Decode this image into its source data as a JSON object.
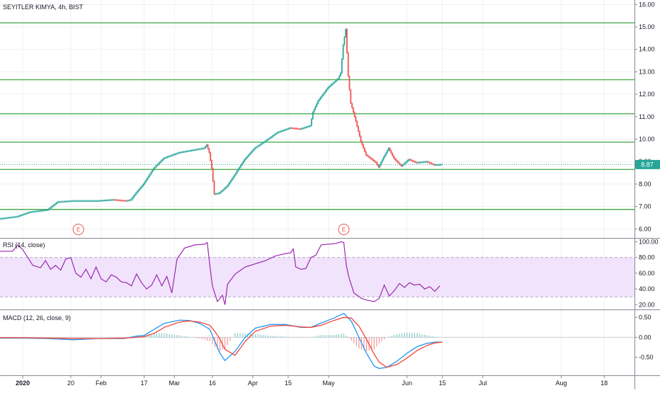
{
  "header": {
    "symbol_title": "SEYITLER KIMYA, 4h, BIST",
    "rsi_label": "RSI (14, close)",
    "macd_label": "MACD (12, 26, close, 9)"
  },
  "colors": {
    "up": "#26a69a",
    "down": "#ef5350",
    "level_line": "#4caf50",
    "rsi_line": "#9c27b0",
    "rsi_band": "#f0e3fb",
    "macd_line": "#2196f3",
    "signal_line": "#f44336",
    "price_badge": "#26a69a"
  },
  "price_badge": "8.87",
  "events": [
    {
      "label": "E",
      "date": 22
    },
    {
      "label": "E",
      "date": 127
    }
  ],
  "chart_data": [
    {
      "type": "candlestick",
      "title": "SEYITLER KIMYA, 4h, BIST",
      "x_tick_labels": [
        "2020",
        "20",
        "Feb",
        "17",
        "Mar",
        "16",
        "Apr",
        "15",
        "May",
        "Jun",
        "15",
        "Jul",
        "Aug",
        "18"
      ],
      "x_tick_days": [
        0,
        19,
        31,
        48,
        60,
        75,
        91,
        105,
        121,
        152,
        166,
        182,
        213,
        230
      ],
      "x_range_days": [
        -9,
        242
      ],
      "ylim": [
        5.6,
        16.2
      ],
      "y_ticks": [
        "6.00",
        "7.00",
        "8.00",
        "9.00",
        "10.00",
        "11.00",
        "12.00",
        "13.00",
        "14.00",
        "15.00",
        "16.00"
      ],
      "horizontal_levels": [
        15.18,
        12.65,
        11.13,
        9.87,
        8.65,
        6.87
      ],
      "last_price": 8.87,
      "price_path": [
        [
          -9,
          6.45
        ],
        [
          -2,
          6.55
        ],
        [
          3,
          6.75
        ],
        [
          10,
          6.85
        ],
        [
          14,
          7.2
        ],
        [
          20,
          7.25
        ],
        [
          30,
          7.25
        ],
        [
          36,
          7.3
        ],
        [
          41,
          7.25
        ],
        [
          43,
          7.3
        ],
        [
          45,
          7.6
        ],
        [
          48,
          8.0
        ],
        [
          52,
          8.7
        ],
        [
          56,
          9.15
        ],
        [
          62,
          9.4
        ],
        [
          67,
          9.5
        ],
        [
          72,
          9.6
        ],
        [
          73,
          9.75
        ],
        [
          74,
          9.4
        ],
        [
          75,
          8.7
        ],
        [
          76,
          7.55
        ],
        [
          78,
          7.6
        ],
        [
          81,
          7.9
        ],
        [
          84,
          8.4
        ],
        [
          88,
          9.1
        ],
        [
          92,
          9.6
        ],
        [
          96,
          9.9
        ],
        [
          101,
          10.3
        ],
        [
          106,
          10.5
        ],
        [
          110,
          10.45
        ],
        [
          114,
          10.6
        ],
        [
          115,
          11.2
        ],
        [
          117,
          11.7
        ],
        [
          121,
          12.3
        ],
        [
          125,
          12.7
        ],
        [
          126,
          12.95
        ],
        [
          127,
          14.2
        ],
        [
          128,
          14.9
        ],
        [
          129,
          12.8
        ],
        [
          130,
          11.6
        ],
        [
          132,
          10.8
        ],
        [
          134,
          9.9
        ],
        [
          136,
          9.3
        ],
        [
          140,
          8.95
        ],
        [
          141,
          8.75
        ],
        [
          143,
          9.2
        ],
        [
          145,
          9.6
        ],
        [
          147,
          9.15
        ],
        [
          150,
          8.8
        ],
        [
          153,
          9.1
        ],
        [
          156,
          8.95
        ],
        [
          160,
          9.0
        ],
        [
          163,
          8.85
        ],
        [
          166,
          8.87
        ]
      ]
    },
    {
      "type": "line",
      "title": "RSI (14, close)",
      "ylim": [
        14,
        104
      ],
      "y_ticks": [
        "20.00",
        "40.00",
        "60.00",
        "80.00",
        "100.00"
      ],
      "band": [
        30,
        80
      ],
      "series": [
        {
          "values": [
            [
              -9,
              88
            ],
            [
              -4,
              88
            ],
            [
              -2,
              96
            ],
            [
              0,
              90
            ],
            [
              2,
              80
            ],
            [
              4,
              70
            ],
            [
              7,
              67
            ],
            [
              9,
              76
            ],
            [
              11,
              65
            ],
            [
              13,
              70
            ],
            [
              15,
              64
            ],
            [
              17,
              78
            ],
            [
              19,
              80
            ],
            [
              21,
              60
            ],
            [
              23,
              55
            ],
            [
              25,
              65
            ],
            [
              27,
              53
            ],
            [
              29,
              68
            ],
            [
              31,
              53
            ],
            [
              33,
              49
            ],
            [
              35,
              58
            ],
            [
              37,
              55
            ],
            [
              39,
              49
            ],
            [
              41,
              48
            ],
            [
              43,
              44
            ],
            [
              45,
              59
            ],
            [
              47,
              48
            ],
            [
              49,
              40
            ],
            [
              51,
              45
            ],
            [
              53,
              58
            ],
            [
              55,
              44
            ],
            [
              57,
              56
            ],
            [
              59,
              35
            ],
            [
              61,
              78
            ],
            [
              64,
              92
            ],
            [
              68,
              96
            ],
            [
              72,
              97
            ],
            [
              73,
              99
            ],
            [
              74,
              70
            ],
            [
              75,
              44
            ],
            [
              77,
              24
            ],
            [
              79,
              32
            ],
            [
              80,
              20
            ],
            [
              81,
              46
            ],
            [
              84,
              59
            ],
            [
              88,
              68
            ],
            [
              92,
              72
            ],
            [
              96,
              76
            ],
            [
              100,
              82
            ],
            [
              104,
              85
            ],
            [
              106,
              86
            ],
            [
              107,
              91
            ],
            [
              108,
              68
            ],
            [
              110,
              65
            ],
            [
              112,
              66
            ],
            [
              114,
              80
            ],
            [
              116,
              83
            ],
            [
              118,
              96
            ],
            [
              124,
              98
            ],
            [
              126,
              100
            ],
            [
              127,
              99
            ],
            [
              128,
              70
            ],
            [
              129,
              55
            ],
            [
              131,
              35
            ],
            [
              134,
              28
            ],
            [
              136,
              26
            ],
            [
              139,
              24
            ],
            [
              141,
              28
            ],
            [
              143,
              45
            ],
            [
              145,
              31
            ],
            [
              147,
              38
            ],
            [
              149,
              47
            ],
            [
              151,
              42
            ],
            [
              153,
              48
            ],
            [
              155,
              45
            ],
            [
              157,
              46
            ],
            [
              159,
              40
            ],
            [
              161,
              43
            ],
            [
              163,
              37
            ],
            [
              165,
              44
            ]
          ]
        }
      ]
    },
    {
      "type": "bar+line",
      "title": "MACD (12, 26, close, 9)",
      "ylim": [
        -0.95,
        0.68
      ],
      "y_ticks": [
        "0.50",
        "0.00",
        "-0.50"
      ],
      "series": [
        {
          "values": [
            [
              -9,
              -0.02
            ],
            [
              0,
              -0.02
            ],
            [
              10,
              -0.03
            ],
            [
              20,
              -0.06
            ],
            [
              30,
              -0.03
            ],
            [
              40,
              -0.03
            ],
            [
              45,
              0.03
            ],
            [
              48,
              0.05
            ],
            [
              52,
              0.2
            ],
            [
              56,
              0.35
            ],
            [
              62,
              0.43
            ],
            [
              66,
              0.42
            ],
            [
              70,
              0.35
            ],
            [
              74,
              0.2
            ],
            [
              76,
              -0.1
            ],
            [
              78,
              -0.4
            ],
            [
              80,
              -0.58
            ],
            [
              84,
              -0.35
            ],
            [
              88,
              0.0
            ],
            [
              92,
              0.23
            ],
            [
              98,
              0.32
            ],
            [
              104,
              0.32
            ],
            [
              110,
              0.25
            ],
            [
              114,
              0.25
            ],
            [
              118,
              0.36
            ],
            [
              123,
              0.48
            ],
            [
              127,
              0.6
            ],
            [
              130,
              0.4
            ],
            [
              133,
              0.0
            ],
            [
              136,
              -0.4
            ],
            [
              139,
              -0.72
            ],
            [
              141,
              -0.78
            ],
            [
              144,
              -0.75
            ],
            [
              148,
              -0.6
            ],
            [
              152,
              -0.4
            ],
            [
              156,
              -0.23
            ],
            [
              160,
              -0.15
            ],
            [
              163,
              -0.12
            ],
            [
              166,
              -0.12
            ]
          ]
        },
        {
          "values": [
            [
              -9,
              -0.01
            ],
            [
              0,
              -0.01
            ],
            [
              10,
              -0.02
            ],
            [
              20,
              -0.03
            ],
            [
              30,
              -0.03
            ],
            [
              40,
              -0.02
            ],
            [
              45,
              0.0
            ],
            [
              48,
              0.02
            ],
            [
              52,
              0.1
            ],
            [
              56,
              0.25
            ],
            [
              62,
              0.38
            ],
            [
              66,
              0.41
            ],
            [
              70,
              0.38
            ],
            [
              74,
              0.3
            ],
            [
              76,
              0.15
            ],
            [
              78,
              -0.05
            ],
            [
              80,
              -0.3
            ],
            [
              84,
              -0.45
            ],
            [
              88,
              -0.1
            ],
            [
              92,
              0.15
            ],
            [
              98,
              0.28
            ],
            [
              104,
              0.3
            ],
            [
              110,
              0.26
            ],
            [
              114,
              0.25
            ],
            [
              118,
              0.3
            ],
            [
              123,
              0.42
            ],
            [
              127,
              0.5
            ],
            [
              130,
              0.48
            ],
            [
              133,
              0.28
            ],
            [
              136,
              -0.05
            ],
            [
              139,
              -0.42
            ],
            [
              141,
              -0.62
            ],
            [
              144,
              -0.75
            ],
            [
              148,
              -0.68
            ],
            [
              152,
              -0.52
            ],
            [
              156,
              -0.33
            ],
            [
              160,
              -0.2
            ],
            [
              163,
              -0.14
            ],
            [
              166,
              -0.12
            ]
          ]
        }
      ]
    }
  ]
}
